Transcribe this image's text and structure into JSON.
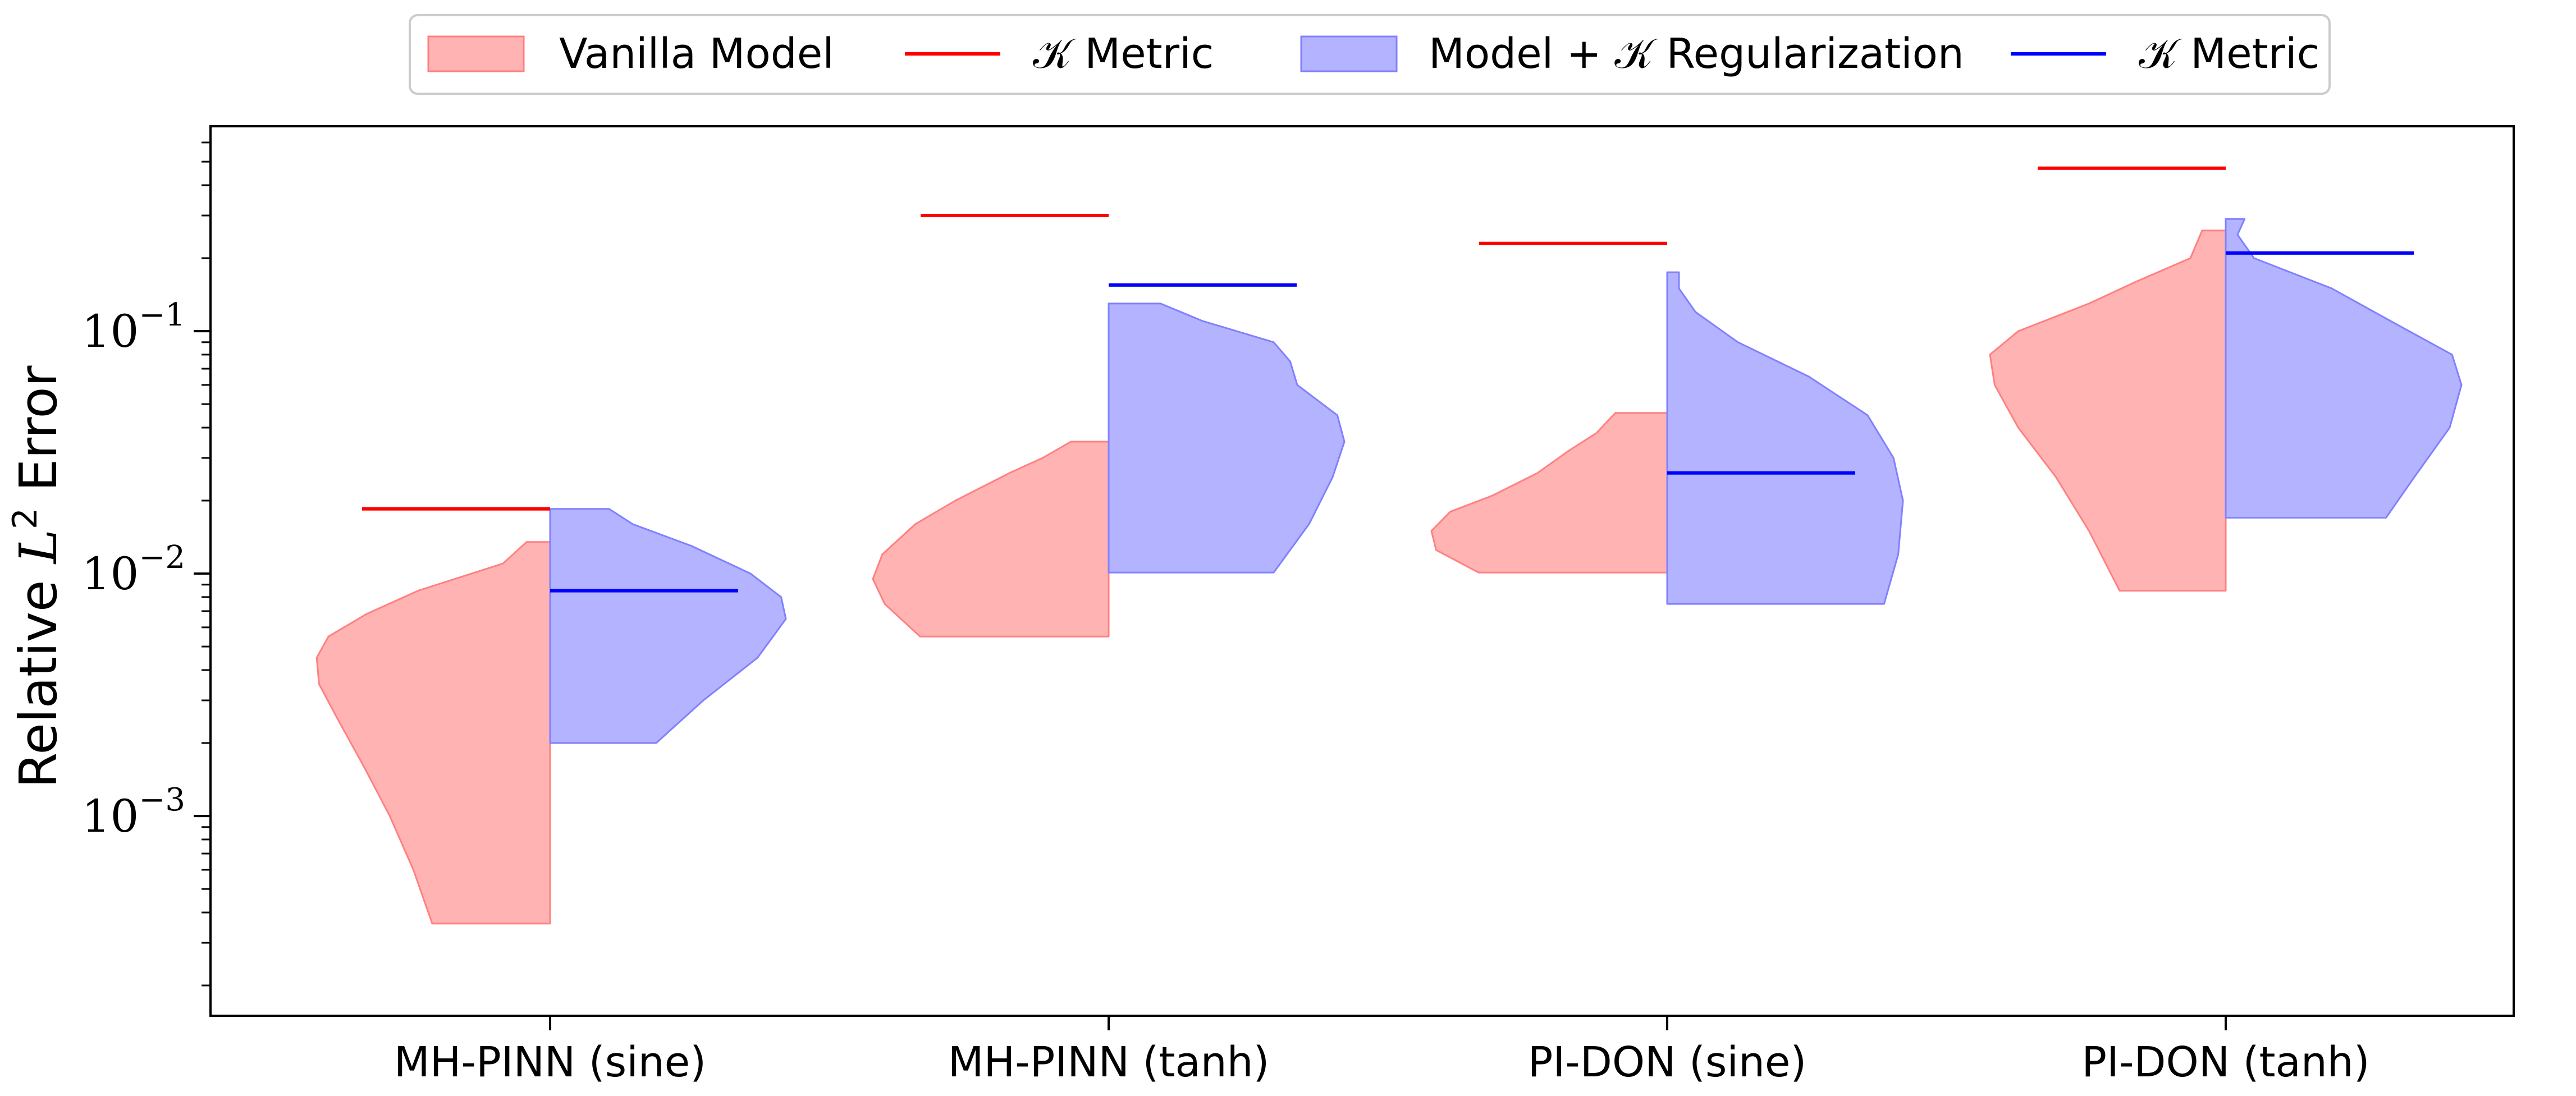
{
  "chart_data": {
    "type": "violin",
    "ylabel_prefix": "Relative ",
    "ylabel_symbol": "L",
    "ylabel_sup": "2",
    "ylabel_suffix": " Error",
    "xlabel": "",
    "yscale": "log",
    "ylim": [
      0.00015,
      0.7
    ],
    "yticks": [
      {
        "value": 0.001,
        "base": "10",
        "exp": "−3"
      },
      {
        "value": 0.01,
        "base": "10",
        "exp": "−2"
      },
      {
        "value": 0.1,
        "base": "10",
        "exp": "−1"
      }
    ],
    "categories": [
      "MH-PINN (sine)",
      "MH-PINN (tanh)",
      "PI-DON (sine)",
      "PI-DON (tanh)"
    ],
    "legend": {
      "placement": "top-center, outside plot",
      "entries": [
        "Vanilla Model",
        "𝒦 Metric",
        "Model + 𝒦 Regularization",
        "𝒦 Metric"
      ]
    },
    "series": [
      {
        "name": "Vanilla Model",
        "side": "left",
        "fill_color": "#ff8080",
        "metric_color": "#ff0000",
        "k_metric": [
          0.0185,
          0.3,
          0.23,
          0.47
        ],
        "violins": [
          {
            "profile": [
              [
                0.00036,
                0.5
              ],
              [
                0.0006,
                0.58
              ],
              [
                0.001,
                0.68
              ],
              [
                0.0016,
                0.79
              ],
              [
                0.0025,
                0.9
              ],
              [
                0.0035,
                0.98
              ],
              [
                0.0045,
                0.99
              ],
              [
                0.0055,
                0.94
              ],
              [
                0.0068,
                0.78
              ],
              [
                0.0085,
                0.56
              ],
              [
                0.011,
                0.2
              ],
              [
                0.0135,
                0.1
              ]
            ]
          },
          {
            "profile": [
              [
                0.0055,
                0.8
              ],
              [
                0.0075,
                0.95
              ],
              [
                0.0095,
                1.0
              ],
              [
                0.012,
                0.96
              ],
              [
                0.016,
                0.82
              ],
              [
                0.02,
                0.65
              ],
              [
                0.026,
                0.42
              ],
              [
                0.03,
                0.28
              ],
              [
                0.035,
                0.16
              ]
            ]
          },
          {
            "profile": [
              [
                0.0101,
                0.8
              ],
              [
                0.0125,
                0.98
              ],
              [
                0.015,
                1.0
              ],
              [
                0.018,
                0.92
              ],
              [
                0.021,
                0.74
              ],
              [
                0.026,
                0.55
              ],
              [
                0.032,
                0.42
              ],
              [
                0.038,
                0.3
              ],
              [
                0.046,
                0.22
              ]
            ]
          },
          {
            "profile": [
              [
                0.0085,
                0.45
              ],
              [
                0.015,
                0.58
              ],
              [
                0.025,
                0.72
              ],
              [
                0.04,
                0.88
              ],
              [
                0.06,
                0.98
              ],
              [
                0.08,
                1.0
              ],
              [
                0.1,
                0.88
              ],
              [
                0.13,
                0.58
              ],
              [
                0.16,
                0.38
              ],
              [
                0.2,
                0.15
              ],
              [
                0.26,
                0.1
              ]
            ]
          }
        ]
      },
      {
        "name": "Model + 𝒦 Regularization",
        "side": "right",
        "fill_color": "#8080ff",
        "metric_color": "#0000ff",
        "k_metric": [
          0.0085,
          0.155,
          0.026,
          0.21
        ],
        "violins": [
          {
            "profile": [
              [
                0.002,
                0.45
              ],
              [
                0.003,
                0.65
              ],
              [
                0.0045,
                0.88
              ],
              [
                0.0065,
                1.0
              ],
              [
                0.008,
                0.98
              ],
              [
                0.01,
                0.85
              ],
              [
                0.013,
                0.6
              ],
              [
                0.016,
                0.35
              ],
              [
                0.0185,
                0.25
              ]
            ]
          },
          {
            "profile": [
              [
                0.0101,
                0.7
              ],
              [
                0.016,
                0.85
              ],
              [
                0.025,
                0.95
              ],
              [
                0.035,
                1.0
              ],
              [
                0.045,
                0.97
              ],
              [
                0.06,
                0.8
              ],
              [
                0.075,
                0.77
              ],
              [
                0.09,
                0.7
              ],
              [
                0.11,
                0.4
              ],
              [
                0.13,
                0.22
              ]
            ]
          },
          {
            "profile": [
              [
                0.0075,
                0.92
              ],
              [
                0.012,
                0.98
              ],
              [
                0.02,
                1.0
              ],
              [
                0.03,
                0.96
              ],
              [
                0.045,
                0.85
              ],
              [
                0.065,
                0.6
              ],
              [
                0.09,
                0.3
              ],
              [
                0.12,
                0.12
              ],
              [
                0.15,
                0.05
              ],
              [
                0.175,
                0.05
              ]
            ]
          },
          {
            "profile": [
              [
                0.017,
                0.68
              ],
              [
                0.025,
                0.8
              ],
              [
                0.04,
                0.95
              ],
              [
                0.06,
                1.0
              ],
              [
                0.08,
                0.96
              ],
              [
                0.11,
                0.7
              ],
              [
                0.15,
                0.45
              ],
              [
                0.2,
                0.12
              ],
              [
                0.25,
                0.05
              ],
              [
                0.29,
                0.08
              ]
            ]
          }
        ]
      }
    ]
  }
}
